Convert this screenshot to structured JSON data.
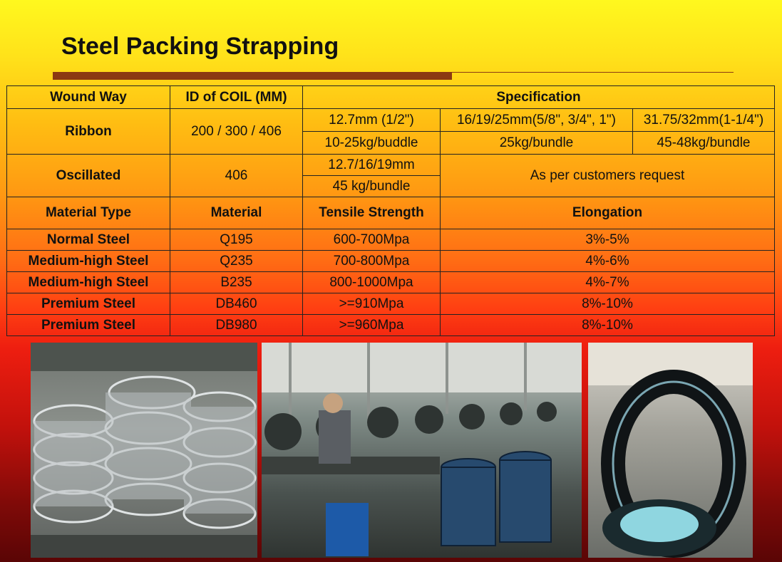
{
  "title": "Steel Packing Strapping",
  "spec_header": {
    "wound_way": "Wound Way",
    "id_of_coil": "ID of COIL (MM)",
    "specification": "Specification"
  },
  "ribbon": {
    "label": "Ribbon",
    "id": "200 / 300 / 406",
    "sizes": [
      "12.7mm (1/2\")",
      "16/19/25mm(5/8\", 3/4\", 1\")",
      "31.75/32mm(1-1/4\")"
    ],
    "weights": [
      "10-25kg/buddle",
      "25kg/bundle",
      "45-48kg/bundle"
    ]
  },
  "oscillated": {
    "label": "Oscillated",
    "id": "406",
    "size": "12.7/16/19mm",
    "weight": "45 kg/bundle",
    "note": "As per customers request"
  },
  "material_header": {
    "type": "Material Type",
    "material": "Material",
    "tensile": "Tensile Strength",
    "elongation": "Elongation"
  },
  "materials": [
    {
      "type": "Normal Steel",
      "material": "Q195",
      "tensile": "600-700Mpa",
      "elongation": "3%-5%"
    },
    {
      "type": "Medium-high Steel",
      "material": "Q235",
      "tensile": "700-800Mpa",
      "elongation": "4%-6%"
    },
    {
      "type": "Medium-high Steel",
      "material": "B235",
      "tensile": "800-1000Mpa",
      "elongation": "4%-7%"
    },
    {
      "type": "Premium Steel",
      "material": "DB460",
      "tensile": ">=910Mpa",
      "elongation": "8%-10%"
    },
    {
      "type": "Premium Steel",
      "material": "DB980",
      "tensile": ">=960Mpa",
      "elongation": "8%-10%"
    }
  ],
  "colors": {
    "title_rule": "#8b3a12",
    "table_border": "#222222"
  }
}
